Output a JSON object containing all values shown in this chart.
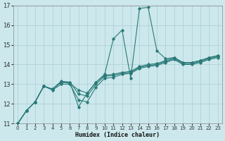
{
  "xlabel": "Humidex (Indice chaleur)",
  "ylabel": "",
  "bg_color": "#cce8ec",
  "grid_color": "#aacdd4",
  "line_color": "#2a7a78",
  "xlim": [
    -0.5,
    23.5
  ],
  "ylim": [
    11,
    17
  ],
  "xticks": [
    0,
    1,
    2,
    3,
    4,
    5,
    6,
    7,
    8,
    9,
    10,
    11,
    12,
    13,
    14,
    15,
    16,
    17,
    18,
    19,
    20,
    21,
    22,
    23
  ],
  "yticks": [
    11,
    12,
    13,
    14,
    15,
    16,
    17
  ],
  "lines": [
    {
      "x": [
        0,
        1,
        2,
        3,
        4,
        5,
        6,
        7,
        8,
        9,
        10,
        11,
        12,
        13,
        14,
        15,
        16,
        17,
        18,
        19,
        20,
        21,
        22,
        23
      ],
      "y": [
        11.0,
        11.65,
        12.1,
        12.9,
        12.75,
        13.15,
        13.1,
        11.85,
        12.55,
        13.1,
        13.5,
        15.3,
        15.75,
        13.3,
        16.85,
        16.9,
        14.7,
        14.3,
        14.35,
        14.1,
        14.1,
        14.2,
        14.35,
        14.45
      ]
    },
    {
      "x": [
        0,
        1,
        2,
        3,
        4,
        5,
        6,
        7,
        8,
        9,
        10,
        11,
        12,
        13,
        14,
        15,
        16,
        17,
        18,
        19,
        20,
        21,
        22,
        23
      ],
      "y": [
        11.0,
        11.65,
        12.1,
        12.9,
        12.75,
        13.1,
        13.05,
        12.7,
        12.55,
        13.1,
        13.45,
        13.5,
        13.6,
        13.65,
        13.9,
        14.0,
        14.05,
        14.2,
        14.35,
        14.1,
        14.1,
        14.2,
        14.35,
        14.45
      ]
    },
    {
      "x": [
        0,
        1,
        2,
        3,
        4,
        5,
        6,
        7,
        8,
        9,
        10,
        11,
        12,
        13,
        14,
        15,
        16,
        17,
        18,
        19,
        20,
        21,
        22,
        23
      ],
      "y": [
        11.0,
        11.65,
        12.1,
        12.9,
        12.75,
        13.1,
        13.1,
        12.5,
        12.4,
        13.0,
        13.4,
        13.45,
        13.55,
        13.6,
        13.85,
        13.95,
        14.0,
        14.15,
        14.3,
        14.05,
        14.05,
        14.15,
        14.3,
        14.4
      ]
    },
    {
      "x": [
        0,
        1,
        2,
        3,
        4,
        5,
        6,
        7,
        8,
        9,
        10,
        11,
        12,
        13,
        14,
        15,
        16,
        17,
        18,
        19,
        20,
        21,
        22,
        23
      ],
      "y": [
        11.0,
        11.65,
        12.1,
        12.9,
        12.7,
        13.0,
        13.0,
        12.2,
        12.1,
        12.85,
        13.3,
        13.35,
        13.5,
        13.55,
        13.8,
        13.9,
        13.95,
        14.1,
        14.25,
        14.0,
        14.0,
        14.1,
        14.25,
        14.35
      ]
    }
  ]
}
